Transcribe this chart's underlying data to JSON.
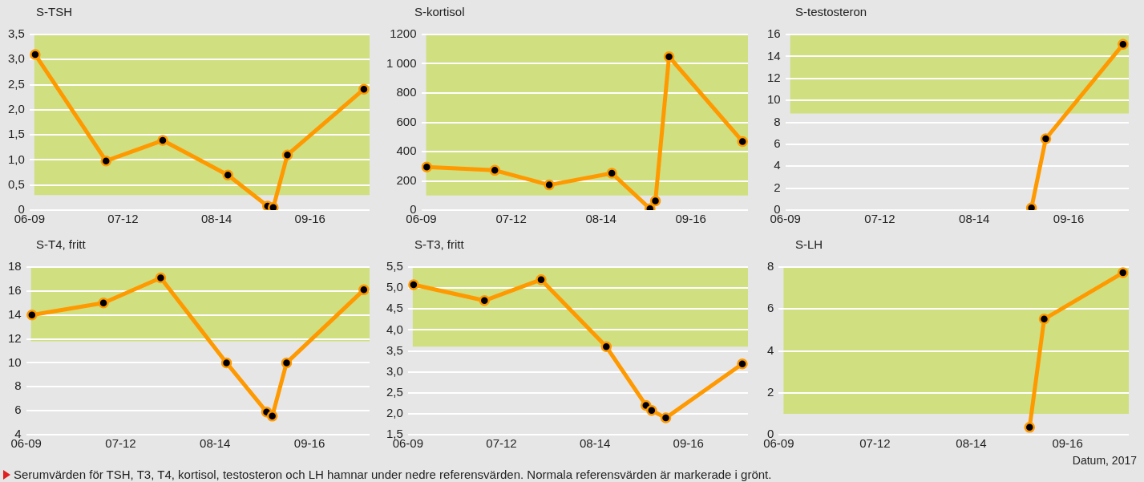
{
  "chart_data": [
    {
      "type": "line",
      "title": "S-TSH",
      "x": [
        "--06-11",
        "--07-06",
        "--07-26",
        "--08-18",
        "--09-01",
        "--09-03",
        "--09-08",
        "--10-05"
      ],
      "series": [
        {
          "color": "#ff9900",
          "values": [
            3.1,
            0.98,
            1.39,
            0.7,
            0.08,
            0.05,
            1.1,
            2.41
          ]
        }
      ],
      "xlim": [
        "--06-09",
        "--10-07"
      ],
      "xticks": [
        {
          "value": "--06-09",
          "label": "06-09"
        },
        {
          "value": "--07-12",
          "label": "07-12"
        },
        {
          "value": "--08-14",
          "label": "08-14"
        },
        {
          "value": "--09-16",
          "label": "09-16"
        }
      ],
      "ylim": [
        0,
        3.5
      ],
      "yticks": [
        0,
        {
          "value": 0.5,
          "label": "0,5"
        },
        {
          "value": 1,
          "label": "1,0"
        },
        {
          "value": 1.5,
          "label": "1,5"
        },
        {
          "value": 2,
          "label": "2,0"
        },
        {
          "value": 2.5,
          "label": "2,5"
        },
        {
          "value": 3,
          "label": "3,0"
        },
        {
          "value": 3.5,
          "label": "3,5"
        }
      ],
      "bands": [
        {
          "axis": "y",
          "from": 0.3,
          "to": 3.5,
          "color": "#d0df80"
        }
      ],
      "grid": "y",
      "legend": false,
      "marker": "circle",
      "line_style": "solid"
    },
    {
      "type": "line",
      "title": "S-kortisol",
      "x": [
        "--06-11",
        "--07-06",
        "--07-26",
        "--08-18",
        "--09-01",
        "--09-03",
        "--09-08",
        "--10-05"
      ],
      "series": [
        {
          "color": "#ff9900",
          "values": [
            295,
            272,
            172,
            252,
            10,
            63,
            1048,
            469
          ]
        }
      ],
      "xlim": [
        "--06-09",
        "--10-07"
      ],
      "xticks": [
        {
          "value": "--06-09",
          "label": "06-09"
        },
        {
          "value": "--07-12",
          "label": "07-12"
        },
        {
          "value": "--08-14",
          "label": "08-14"
        },
        {
          "value": "--09-16",
          "label": "09-16"
        }
      ],
      "ylim": [
        0,
        1200
      ],
      "yticks": [
        0,
        200,
        400,
        600,
        800,
        {
          "value": 1000,
          "label": "1 000"
        },
        1200
      ],
      "bands": [
        {
          "axis": "y",
          "from": 100,
          "to": 1200,
          "color": "#d0df80"
        }
      ],
      "grid": "y",
      "legend": false,
      "marker": "circle",
      "line_style": "solid"
    },
    {
      "type": "line",
      "title": "S-testosteron",
      "x": [
        "--09-03",
        "--09-08",
        "--10-05"
      ],
      "series": [
        {
          "color": "#ff9900",
          "values": [
            0.2,
            6.5,
            15.1
          ]
        }
      ],
      "xlim": [
        "--06-09",
        "--10-07"
      ],
      "xticks": [
        {
          "value": "--06-09",
          "label": "06-09"
        },
        {
          "value": "--07-12",
          "label": "07-12"
        },
        {
          "value": "--08-14",
          "label": "08-14"
        },
        {
          "value": "--09-16",
          "label": "09-16"
        }
      ],
      "ylim": [
        0,
        16
      ],
      "yticks": [
        0,
        2,
        4,
        6,
        8,
        10,
        12,
        14,
        16
      ],
      "bands": [
        {
          "axis": "y",
          "from": 8.8,
          "to": 16,
          "color": "#d0df80"
        }
      ],
      "grid": "y",
      "legend": false,
      "marker": "circle",
      "line_style": "solid"
    },
    {
      "type": "line",
      "title": "S-T4, fritt",
      "x": [
        "--06-11",
        "--07-06",
        "--07-26",
        "--08-18",
        "--09-01",
        "--09-03",
        "--09-08",
        "--10-05"
      ],
      "series": [
        {
          "color": "#ff9900",
          "values": [
            14,
            15,
            17.1,
            10,
            5.9,
            5.55,
            10,
            16.1
          ]
        }
      ],
      "xlim": [
        "--06-09",
        "--10-07"
      ],
      "xticks": [
        {
          "value": "--06-09",
          "label": "06-09"
        },
        {
          "value": "--07-12",
          "label": "07-12"
        },
        {
          "value": "--08-14",
          "label": "08-14"
        },
        {
          "value": "--09-16",
          "label": "09-16"
        }
      ],
      "ylim": [
        4,
        18
      ],
      "yticks": [
        4,
        6,
        8,
        10,
        12,
        14,
        16,
        18
      ],
      "bands": [
        {
          "axis": "y",
          "from": 11.8,
          "to": 18,
          "color": "#d0df80"
        }
      ],
      "grid": "y",
      "legend": false,
      "marker": "circle",
      "line_style": "solid"
    },
    {
      "type": "line",
      "title": "S-T3, fritt",
      "x": [
        "--06-11",
        "--07-06",
        "--07-26",
        "--08-18",
        "--09-01",
        "--09-03",
        "--09-08",
        "--10-05"
      ],
      "series": [
        {
          "color": "#ff9900",
          "values": [
            5.08,
            4.7,
            5.2,
            3.6,
            2.2,
            2.08,
            1.9,
            3.19
          ]
        }
      ],
      "xlim": [
        "--06-09",
        "--10-07"
      ],
      "xticks": [
        {
          "value": "--06-09",
          "label": "06-09"
        },
        {
          "value": "--07-12",
          "label": "07-12"
        },
        {
          "value": "--08-14",
          "label": "08-14"
        },
        {
          "value": "--09-16",
          "label": "09-16"
        }
      ],
      "ylim": [
        1.5,
        5.5
      ],
      "yticks": [
        {
          "value": 1.5,
          "label": "1,5"
        },
        {
          "value": 2,
          "label": "2,0"
        },
        {
          "value": 2.5,
          "label": "2,5"
        },
        {
          "value": 3,
          "label": "3,0"
        },
        {
          "value": 3.5,
          "label": "3,5"
        },
        {
          "value": 4,
          "label": "4,0"
        },
        {
          "value": 4.5,
          "label": "4,5"
        },
        {
          "value": 5,
          "label": "5,0"
        },
        {
          "value": 5.5,
          "label": "5,5"
        }
      ],
      "bands": [
        {
          "axis": "y",
          "from": 3.6,
          "to": 5.5,
          "color": "#d0df80"
        }
      ],
      "grid": "y",
      "legend": false,
      "marker": "circle",
      "line_style": "solid"
    },
    {
      "type": "line",
      "title": "S-LH",
      "xlabel": "Datum, 2017",
      "x": [
        "--09-03",
        "--09-08",
        "--10-05"
      ],
      "series": [
        {
          "color": "#ff9900",
          "values": [
            0.35,
            5.52,
            7.73
          ]
        }
      ],
      "xlim": [
        "--06-09",
        "--10-07"
      ],
      "xticks": [
        {
          "value": "--06-09",
          "label": "06-09"
        },
        {
          "value": "--07-12",
          "label": "07-12"
        },
        {
          "value": "--08-14",
          "label": "08-14"
        },
        {
          "value": "--09-16",
          "label": "09-16"
        }
      ],
      "ylim": [
        0,
        8
      ],
      "yticks": [
        0,
        2,
        4,
        6,
        8
      ],
      "bands": [
        {
          "axis": "y",
          "from": 1.0,
          "to": 8,
          "color": "#d0df80"
        }
      ],
      "annotations": [
        "Serumvärden för TSH, T3, T4, kortisol, testosteron och LH hamnar under nedre referensvärden. Normala referensvärden är markerade i grönt."
      ],
      "grid": "y",
      "legend": false,
      "marker": "circle",
      "line_style": "solid"
    }
  ]
}
